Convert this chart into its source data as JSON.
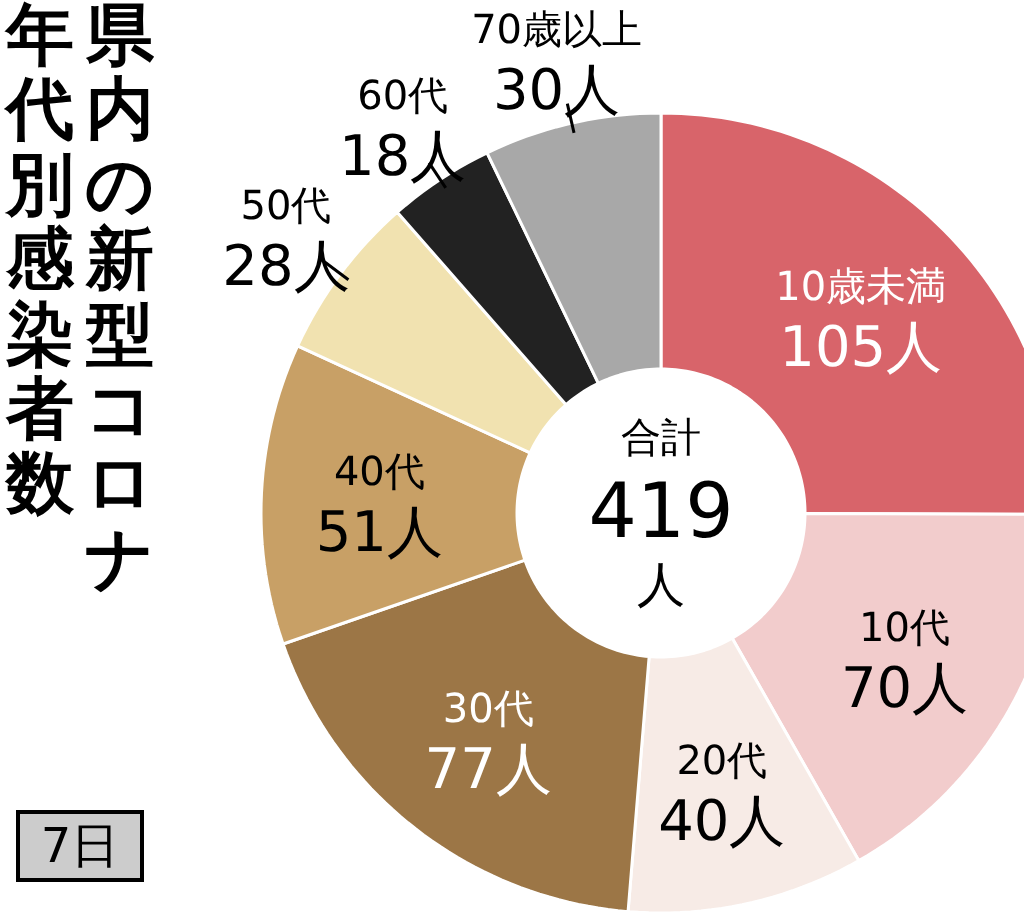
{
  "chart_data": {
    "type": "donut",
    "title": "県内の新型コロナ",
    "subtitle": "年代別感染者数",
    "categories": [
      "10歳未満",
      "10代",
      "20代",
      "30代",
      "40代",
      "50代",
      "60代",
      "70歳以上"
    ],
    "values": [
      105,
      70,
      40,
      77,
      51,
      28,
      18,
      30
    ],
    "value_labels": [
      "105人",
      "70人",
      "40人",
      "77人",
      "51人",
      "28人",
      "18人",
      "30人"
    ],
    "colors": [
      "#d8646a",
      "#f2cccc",
      "#f7ebe6",
      "#9c7646",
      "#c8a066",
      "#f1e2b0",
      "#222222",
      "#a8a8a8"
    ],
    "annotations": [
      "合計",
      "419",
      "人",
      "7日"
    ]
  }
}
